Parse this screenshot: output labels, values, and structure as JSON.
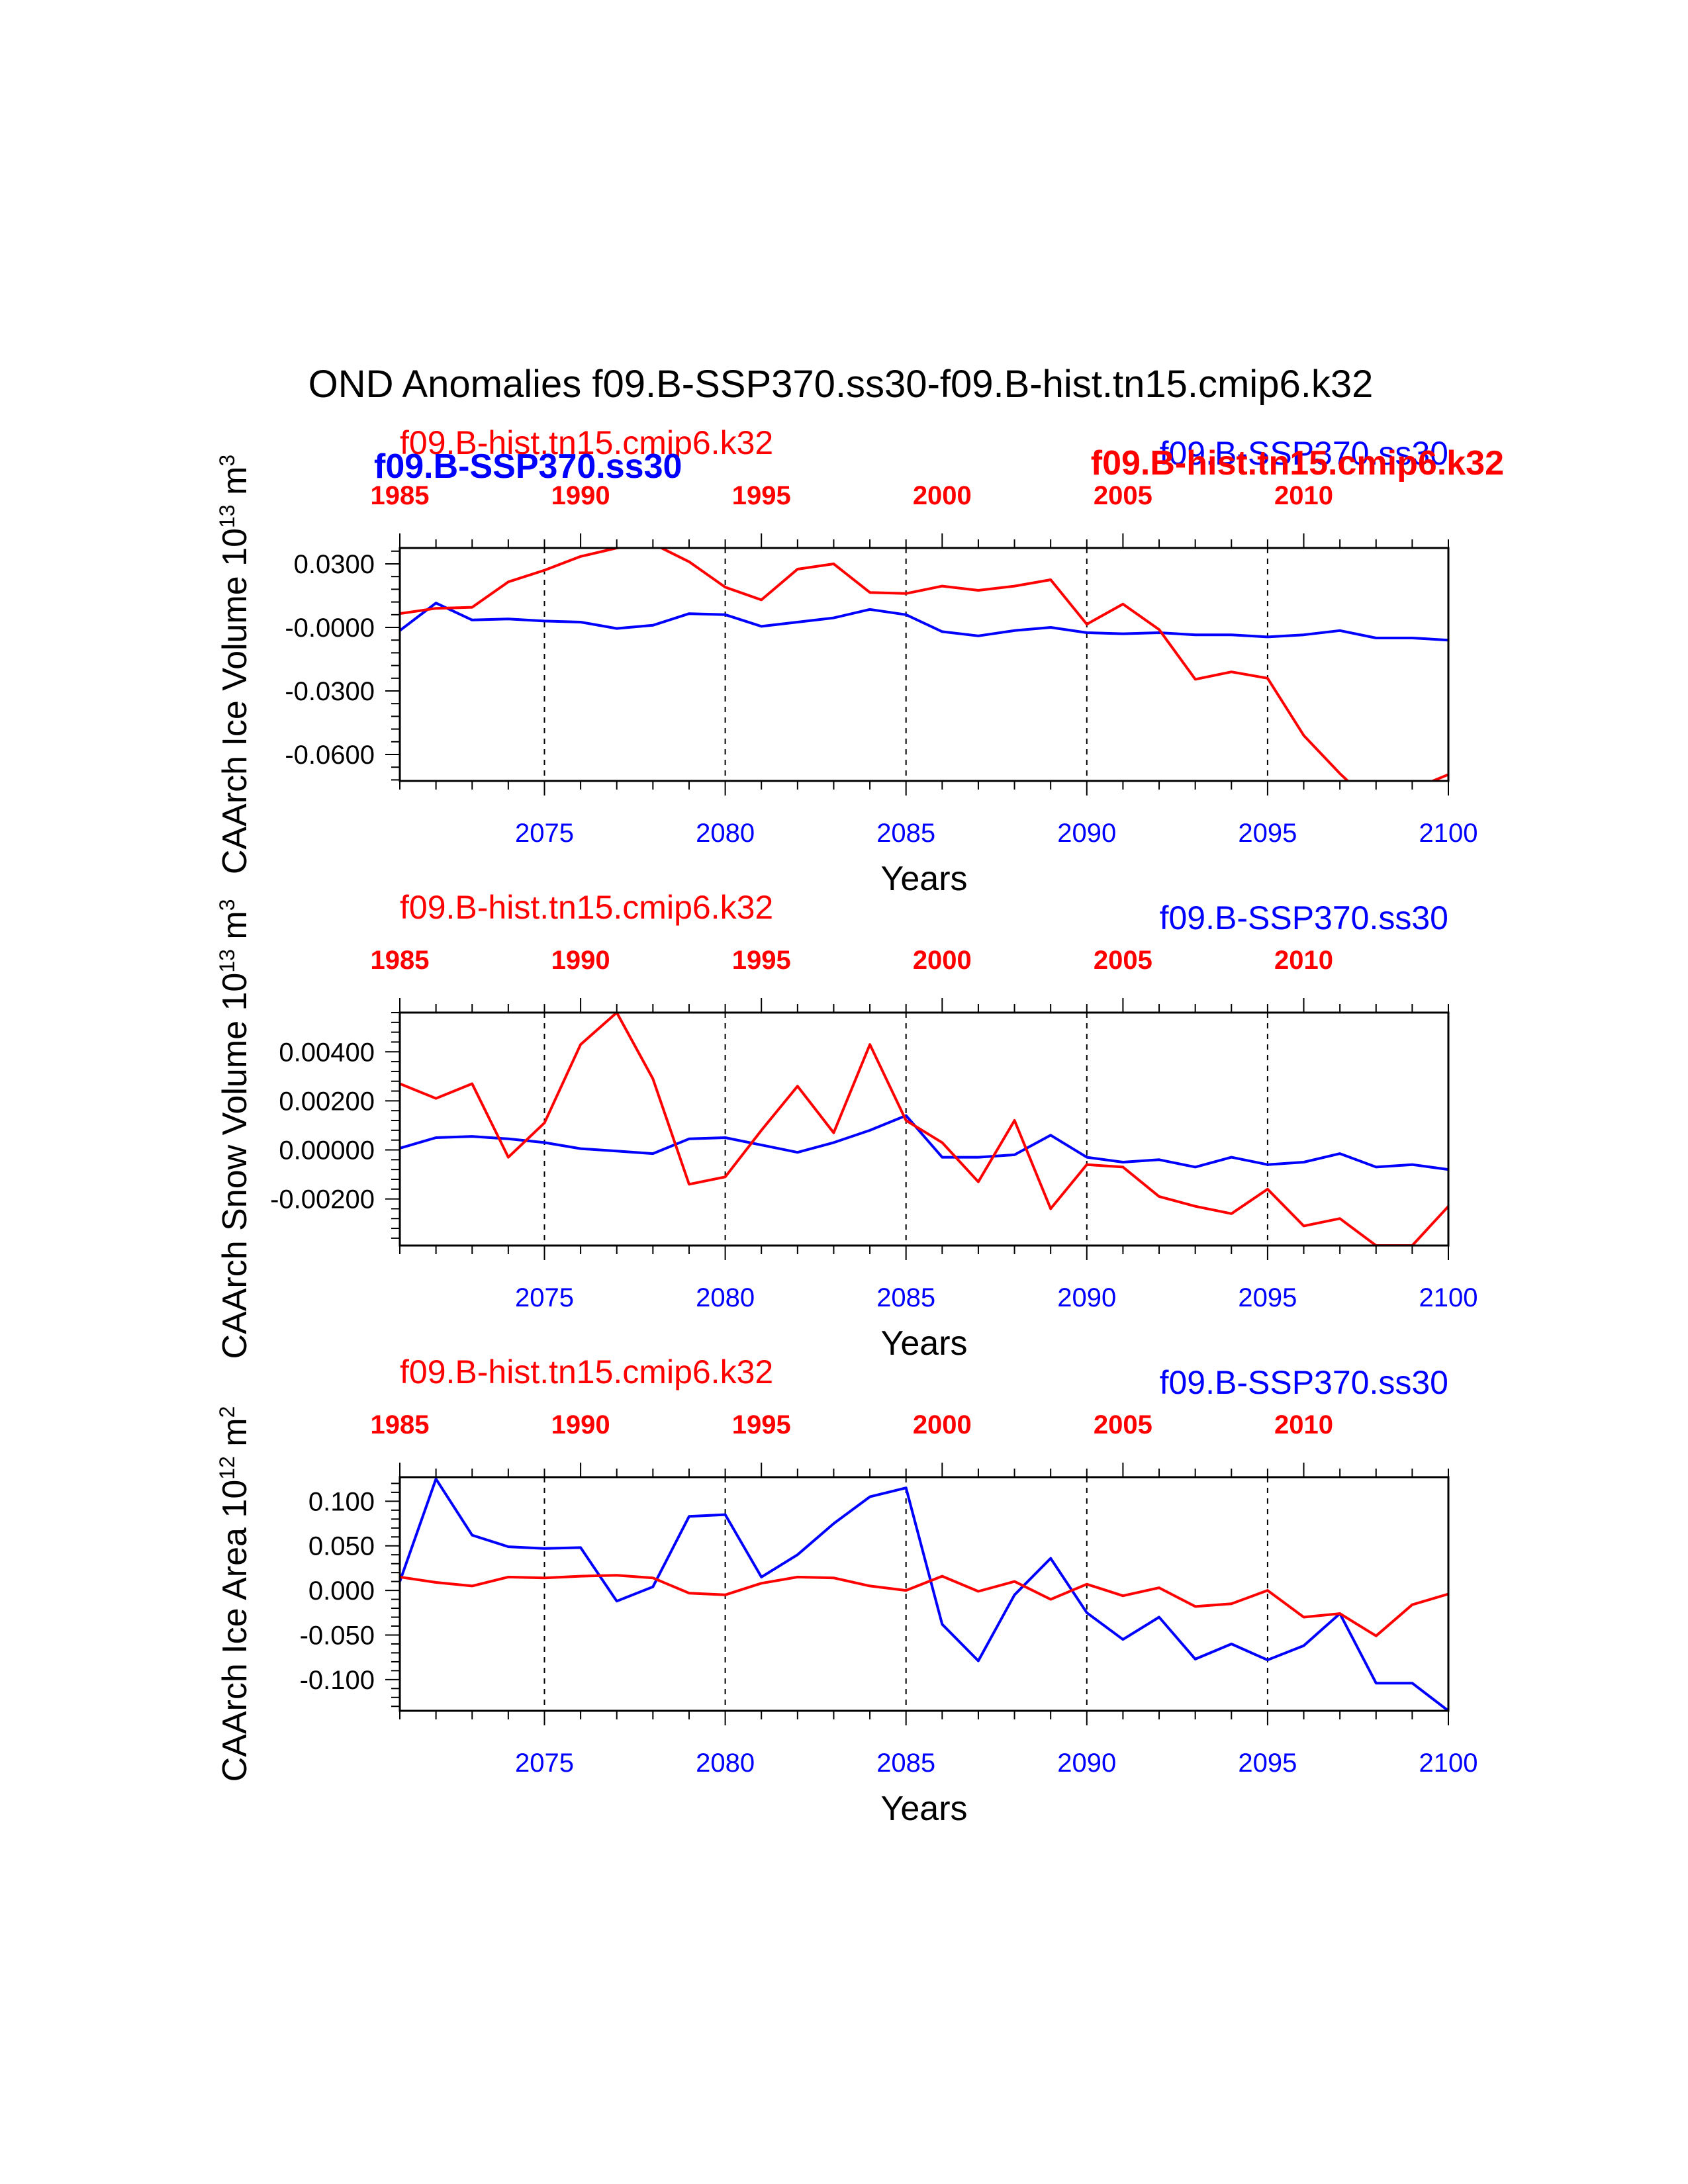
{
  "figure": {
    "title": "OND Anomalies f09.B-SSP370.ss30-f09.B-hist.tn15.cmip6.k32",
    "overlay_labels": {
      "left_blue": "f09.B-SSP370.ss30",
      "right_red": "f09.B-hist.tn15.cmip6.k32"
    },
    "colors": {
      "ssp370": "#0000ff",
      "hist": "#ff0000",
      "axis": "#000000"
    }
  },
  "chart_data": [
    {
      "type": "line",
      "ylabel": "CAArch Ice Volume 10^13 m^3",
      "ylabel_main": "CAArch Ice Volume 10",
      "ylabel_exp": "13",
      "ylabel_unit": "m",
      "ylabel_unit_exp": "3",
      "xlabel": "Years",
      "ylim": [
        -0.0725,
        0.0375
      ],
      "yticks": [
        0.03,
        0.0,
        -0.03,
        -0.06
      ],
      "ytick_labels": [
        "0.0300",
        "-0.0000",
        "-0.0300",
        "-0.0600"
      ],
      "series_labels": {
        "hist": "f09.B-hist.tn15.cmip6.k32",
        "ssp370": "f09.B-SSP370.ss30"
      },
      "bottom_axis": {
        "range": [
          2071,
          2100
        ],
        "ticks": [
          2075,
          2080,
          2085,
          2090,
          2095,
          2100
        ]
      },
      "top_axis": {
        "range": [
          1985,
          2014
        ],
        "ticks": [
          1985,
          1990,
          1995,
          2000,
          2005,
          2010
        ]
      },
      "series": [
        {
          "name": "f09.B-SSP370.ss30",
          "color": "#0000ff",
          "x": [
            2071,
            2072,
            2073,
            2074,
            2075,
            2076,
            2077,
            2078,
            2079,
            2080,
            2081,
            2082,
            2083,
            2084,
            2085,
            2086,
            2087,
            2088,
            2089,
            2090,
            2091,
            2092,
            2093,
            2094,
            2095,
            2096,
            2097,
            2098,
            2099,
            2100
          ],
          "values": [
            -0.0015,
            0.0115,
            0.0035,
            0.004,
            0.003,
            0.0025,
            -0.0005,
            0.001,
            0.0065,
            0.006,
            0.0005,
            0.0025,
            0.0045,
            0.0085,
            0.006,
            -0.002,
            -0.004,
            -0.0015,
            0.0,
            -0.0025,
            -0.003,
            -0.0025,
            -0.0035,
            -0.0035,
            -0.0045,
            -0.0035,
            -0.0015,
            -0.005,
            -0.005,
            -0.006
          ]
        },
        {
          "name": "f09.B-hist.tn15.cmip6.k32",
          "color": "#ff0000",
          "x": [
            1985,
            1986,
            1987,
            1988,
            1989,
            1990,
            1991,
            1992,
            1993,
            1994,
            1995,
            1996,
            1997,
            1998,
            1999,
            2000,
            2001,
            2002,
            2003,
            2004,
            2005,
            2006,
            2007,
            2008,
            2009,
            2010,
            2011,
            2012,
            2013,
            2014
          ],
          "values": [
            0.0065,
            0.009,
            0.0095,
            0.0215,
            0.027,
            0.0335,
            0.0375,
            0.0395,
            0.031,
            0.019,
            0.013,
            0.0275,
            0.03,
            0.0165,
            0.016,
            0.0195,
            0.0175,
            0.0195,
            0.0225,
            0.0015,
            0.011,
            -0.001,
            -0.0245,
            -0.021,
            -0.024,
            -0.051,
            -0.069,
            -0.085,
            -0.0765,
            -0.0695
          ]
        }
      ]
    },
    {
      "type": "line",
      "ylabel": "CAArch Snow Volume 10^13 m^3",
      "ylabel_main": "CAArch Snow Volume 10",
      "ylabel_exp": "13",
      "ylabel_unit": "m",
      "ylabel_unit_exp": "3",
      "xlabel": "Years",
      "ylim": [
        -0.0039,
        0.0056
      ],
      "yticks": [
        0.004,
        0.002,
        0.0,
        -0.002
      ],
      "ytick_labels": [
        "0.00400",
        "0.00200",
        "0.00000",
        "-0.00200"
      ],
      "series_labels": {
        "hist": "f09.B-hist.tn15.cmip6.k32",
        "ssp370": "f09.B-SSP370.ss30"
      },
      "bottom_axis": {
        "range": [
          2071,
          2100
        ],
        "ticks": [
          2075,
          2080,
          2085,
          2090,
          2095,
          2100
        ]
      },
      "top_axis": {
        "range": [
          1985,
          2014
        ],
        "ticks": [
          1985,
          1990,
          1995,
          2000,
          2005,
          2010
        ]
      },
      "series": [
        {
          "name": "f09.B-SSP370.ss30",
          "color": "#0000ff",
          "x": [
            2071,
            2072,
            2073,
            2074,
            2075,
            2076,
            2077,
            2078,
            2079,
            2080,
            2081,
            2082,
            2083,
            2084,
            2085,
            2086,
            2087,
            2088,
            2089,
            2090,
            2091,
            2092,
            2093,
            2094,
            2095,
            2096,
            2097,
            2098,
            2099,
            2100
          ],
          "values": [
            7e-05,
            0.0005,
            0.00055,
            0.00045,
            0.0003,
            5e-05,
            -5e-05,
            -0.00015,
            0.00045,
            0.0005,
            0.0002,
            -0.0001,
            0.0003,
            0.0008,
            0.0014,
            -0.0003,
            -0.0003,
            -0.0002,
            0.0006,
            -0.0003,
            -0.0005,
            -0.0004,
            -0.0007,
            -0.0003,
            -0.0006,
            -0.0005,
            -0.00015,
            -0.0007,
            -0.0006,
            -0.0008
          ]
        },
        {
          "name": "f09.B-hist.tn15.cmip6.k32",
          "color": "#ff0000",
          "x": [
            1985,
            1986,
            1987,
            1988,
            1989,
            1990,
            1991,
            1992,
            1993,
            1994,
            1995,
            1996,
            1997,
            1998,
            1999,
            2000,
            2001,
            2002,
            2003,
            2004,
            2005,
            2006,
            2007,
            2008,
            2009,
            2010,
            2011,
            2012,
            2013,
            2014
          ],
          "values": [
            0.0027,
            0.0021,
            0.0027,
            -0.0003,
            0.0011,
            0.0043,
            0.0056,
            0.0029,
            -0.0014,
            -0.0011,
            0.0008,
            0.0026,
            0.0007,
            0.0043,
            0.0012,
            0.0003,
            -0.0013,
            0.0012,
            -0.0024,
            -0.0006,
            -0.0007,
            -0.0019,
            -0.0023,
            -0.0026,
            -0.0016,
            -0.0031,
            -0.0028,
            -0.0039,
            -0.0039,
            -0.0023
          ]
        }
      ]
    },
    {
      "type": "line",
      "ylabel": "CAArch Ice Area 10^12 m^2",
      "ylabel_main": "CAArch Ice Area 10",
      "ylabel_exp": "12",
      "ylabel_unit": "m",
      "ylabel_unit_exp": "2",
      "xlabel": "Years",
      "ylim": [
        -0.135,
        0.127
      ],
      "yticks": [
        0.1,
        0.05,
        0.0,
        -0.05,
        -0.1
      ],
      "ytick_labels": [
        "0.100",
        "0.050",
        "0.000",
        "-0.050",
        "-0.100"
      ],
      "series_labels": {
        "hist": "f09.B-hist.tn15.cmip6.k32",
        "ssp370": "f09.B-SSP370.ss30"
      },
      "bottom_axis": {
        "range": [
          2071,
          2100
        ],
        "ticks": [
          2075,
          2080,
          2085,
          2090,
          2095,
          2100
        ]
      },
      "top_axis": {
        "range": [
          1985,
          2014
        ],
        "ticks": [
          1985,
          1990,
          1995,
          2000,
          2005,
          2010
        ]
      },
      "series": [
        {
          "name": "f09.B-SSP370.ss30",
          "color": "#0000ff",
          "x": [
            2071,
            2072,
            2073,
            2074,
            2075,
            2076,
            2077,
            2078,
            2079,
            2080,
            2081,
            2082,
            2083,
            2084,
            2085,
            2086,
            2087,
            2088,
            2089,
            2090,
            2091,
            2092,
            2093,
            2094,
            2095,
            2096,
            2097,
            2098,
            2099,
            2100
          ],
          "values": [
            0.01,
            0.125,
            0.062,
            0.049,
            0.047,
            0.048,
            -0.012,
            0.004,
            0.083,
            0.085,
            0.015,
            0.04,
            0.075,
            0.105,
            0.115,
            -0.038,
            -0.079,
            -0.005,
            0.036,
            -0.025,
            -0.055,
            -0.03,
            -0.077,
            -0.06,
            -0.078,
            -0.062,
            -0.026,
            -0.104,
            -0.104,
            -0.135
          ]
        },
        {
          "name": "f09.B-hist.tn15.cmip6.k32",
          "color": "#ff0000",
          "x": [
            1985,
            1986,
            1987,
            1988,
            1989,
            1990,
            1991,
            1992,
            1993,
            1994,
            1995,
            1996,
            1997,
            1998,
            1999,
            2000,
            2001,
            2002,
            2003,
            2004,
            2005,
            2006,
            2007,
            2008,
            2009,
            2010,
            2011,
            2012,
            2013,
            2014
          ],
          "values": [
            0.015,
            0.009,
            0.005,
            0.015,
            0.014,
            0.016,
            0.017,
            0.014,
            -0.003,
            -0.005,
            0.008,
            0.015,
            0.014,
            0.005,
            0.0,
            0.016,
            -0.001,
            0.01,
            -0.01,
            0.007,
            -0.006,
            0.003,
            -0.018,
            -0.015,
            0.0,
            -0.03,
            -0.026,
            -0.051,
            -0.016,
            -0.004
          ]
        }
      ]
    }
  ]
}
